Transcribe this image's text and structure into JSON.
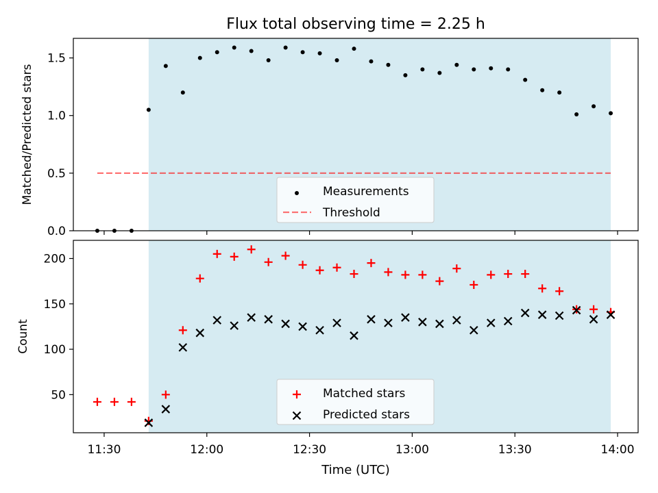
{
  "title": "Flux total observing time = 2.25 h",
  "xlabel": "Time (UTC)",
  "colors": {
    "shade": "#add8e6",
    "threshold": "#ff0000",
    "matched": "#ff0000",
    "predicted": "#000000",
    "measurements": "#000000"
  },
  "chart_data": [
    {
      "type": "scatter",
      "ylabel": "Matched/Predicted stars",
      "ylim": [
        0,
        1.67
      ],
      "yticks": [
        0.0,
        0.5,
        1.0,
        1.5
      ],
      "ytick_labels": [
        "0.0",
        "0.5",
        "1.0",
        "1.5"
      ],
      "xlim": [
        "11:21",
        "14:06"
      ],
      "shaded_interval": [
        "11:43",
        "13:58"
      ],
      "threshold": {
        "name": "Threshold",
        "value": 0.5,
        "x_range": [
          "11:28",
          "13:58"
        ],
        "style": "dashed"
      },
      "legend": {
        "placement": "lower center",
        "entries": [
          "Measurements",
          "Threshold"
        ]
      },
      "series": [
        {
          "name": "Measurements",
          "x": [
            "11:28",
            "11:33",
            "11:38",
            "11:43",
            "11:48",
            "11:53",
            "11:58",
            "12:03",
            "12:08",
            "12:13",
            "12:18",
            "12:23",
            "12:28",
            "12:33",
            "12:38",
            "12:43",
            "12:48",
            "12:53",
            "12:58",
            "13:03",
            "13:08",
            "13:13",
            "13:18",
            "13:23",
            "13:28",
            "13:33",
            "13:38",
            "13:43",
            "13:48",
            "13:53",
            "13:58"
          ],
          "y": [
            0.0,
            0.0,
            0.0,
            1.05,
            1.43,
            1.2,
            1.5,
            1.55,
            1.59,
            1.56,
            1.48,
            1.59,
            1.55,
            1.54,
            1.48,
            1.58,
            1.47,
            1.44,
            1.35,
            1.4,
            1.37,
            1.44,
            1.4,
            1.41,
            1.4,
            1.31,
            1.22,
            1.2,
            1.01,
            1.08,
            1.02
          ]
        }
      ]
    },
    {
      "type": "scatter",
      "ylabel": "Count",
      "ylim": [
        8,
        220
      ],
      "yticks": [
        50,
        100,
        150,
        200
      ],
      "ytick_labels": [
        "50",
        "100",
        "150",
        "200"
      ],
      "xlim": [
        "11:21",
        "14:06"
      ],
      "xticks": [
        "11:30",
        "12:00",
        "12:30",
        "13:00",
        "13:30",
        "14:00"
      ],
      "shaded_interval": [
        "11:43",
        "13:58"
      ],
      "legend": {
        "placement": "lower center",
        "entries": [
          "Matched stars",
          "Predicted stars"
        ]
      },
      "series": [
        {
          "name": "Matched stars",
          "marker": "+",
          "x": [
            "11:28",
            "11:33",
            "11:38",
            "11:43",
            "11:48",
            "11:53",
            "11:58",
            "12:03",
            "12:08",
            "12:13",
            "12:18",
            "12:23",
            "12:28",
            "12:33",
            "12:38",
            "12:43",
            "12:48",
            "12:53",
            "12:58",
            "13:03",
            "13:08",
            "13:13",
            "13:18",
            "13:23",
            "13:28",
            "13:33",
            "13:38",
            "13:43",
            "13:48",
            "13:53",
            "13:58"
          ],
          "y": [
            42,
            42,
            42,
            21,
            50,
            121,
            178,
            205,
            202,
            210,
            196,
            203,
            193,
            187,
            190,
            183,
            195,
            185,
            182,
            182,
            175,
            189,
            171,
            182,
            183,
            183,
            167,
            164,
            144,
            144,
            141
          ]
        },
        {
          "name": "Predicted stars",
          "marker": "x",
          "x": [
            "11:43",
            "11:48",
            "11:53",
            "11:58",
            "12:03",
            "12:08",
            "12:13",
            "12:18",
            "12:23",
            "12:28",
            "12:33",
            "12:38",
            "12:43",
            "12:48",
            "12:53",
            "12:58",
            "13:03",
            "13:08",
            "13:13",
            "13:18",
            "13:23",
            "13:28",
            "13:33",
            "13:38",
            "13:43",
            "13:48",
            "13:53",
            "13:58"
          ],
          "y": [
            19,
            34,
            102,
            118,
            132,
            126,
            135,
            133,
            128,
            125,
            121,
            129,
            115,
            133,
            129,
            135,
            130,
            128,
            132,
            121,
            129,
            131,
            140,
            138,
            137,
            143,
            133,
            138
          ]
        }
      ]
    }
  ]
}
